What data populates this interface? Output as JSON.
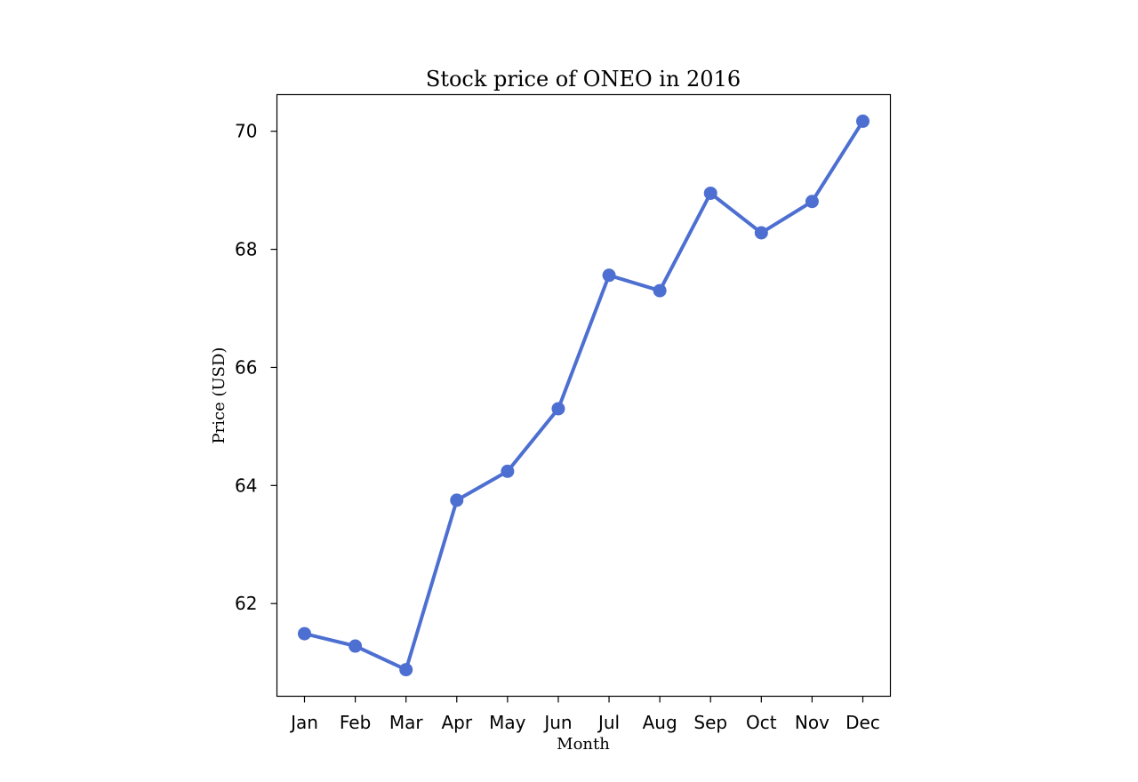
{
  "chart_data": {
    "type": "line",
    "title": "Stock price of ONEO in 2016",
    "xlabel": "Month",
    "ylabel": "Price (USD)",
    "categories": [
      "Jan",
      "Feb",
      "Mar",
      "Apr",
      "May",
      "Jun",
      "Jul",
      "Aug",
      "Sep",
      "Oct",
      "Nov",
      "Dec"
    ],
    "series": [
      {
        "values": [
          61.49,
          61.28,
          60.88,
          63.75,
          64.24,
          65.3,
          67.56,
          67.3,
          68.95,
          68.28,
          68.81,
          70.17
        ],
        "color": "#4d6fd1"
      }
    ],
    "yticks": [
      62,
      64,
      66,
      68,
      70
    ],
    "ylim": [
      60.43,
      70.62
    ],
    "grid": false,
    "legend": "none"
  }
}
